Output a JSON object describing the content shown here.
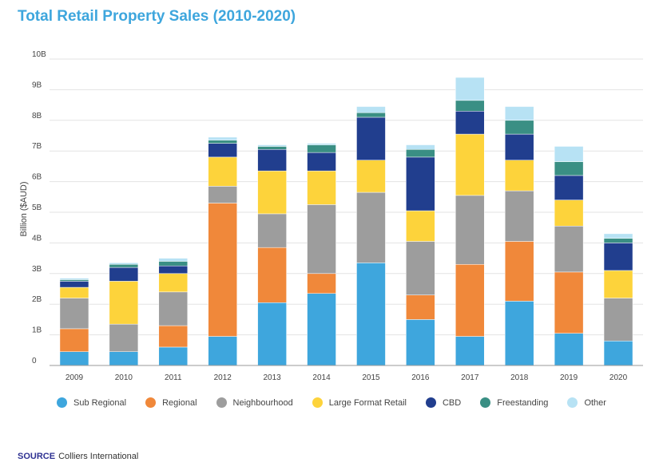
{
  "chart_data": {
    "type": "bar",
    "stacked": true,
    "title": "Total Retail Property Sales (2010-2020)",
    "ylabel": "Billion ($AUD)",
    "xlabel": "",
    "ylim": [
      0,
      10
    ],
    "yticks": [
      {
        "value": 0,
        "label": "0"
      },
      {
        "value": 1,
        "label": "1B"
      },
      {
        "value": 2,
        "label": "2B"
      },
      {
        "value": 3,
        "label": "3B"
      },
      {
        "value": 4,
        "label": "4B"
      },
      {
        "value": 5,
        "label": "5B"
      },
      {
        "value": 6,
        "label": "6B"
      },
      {
        "value": 7,
        "label": "7B"
      },
      {
        "value": 8,
        "label": "8B"
      },
      {
        "value": 9,
        "label": "9B"
      },
      {
        "value": 10,
        "label": "10B"
      }
    ],
    "grid": true,
    "legend_position": "bottom",
    "categories": [
      "2009",
      "2010",
      "2011",
      "2012",
      "2013",
      "2014",
      "2015",
      "2016",
      "2017",
      "2018",
      "2019",
      "2020"
    ],
    "series": [
      {
        "name": "Sub Regional",
        "color": "#3ea6dd",
        "values": [
          0.45,
          0.45,
          0.6,
          0.95,
          2.05,
          2.35,
          3.35,
          1.5,
          0.95,
          2.1,
          1.05,
          0.8
        ]
      },
      {
        "name": "Regional",
        "color": "#f0883a",
        "values": [
          0.75,
          0,
          0.7,
          4.35,
          1.8,
          0.65,
          0,
          0.8,
          2.35,
          1.95,
          2.0,
          0
        ]
      },
      {
        "name": "Neighbourhood",
        "color": "#9d9d9d",
        "values": [
          1.0,
          0.9,
          1.1,
          0.55,
          1.1,
          2.25,
          2.3,
          1.75,
          2.25,
          1.65,
          1.5,
          1.4
        ]
      },
      {
        "name": "Large Format Retail",
        "color": "#fdd33b",
        "values": [
          0.35,
          1.4,
          0.6,
          0.95,
          1.4,
          1.1,
          1.05,
          1.0,
          2.0,
          1.0,
          0.85,
          0.9
        ]
      },
      {
        "name": "CBD",
        "color": "#213e8e",
        "values": [
          0.2,
          0.45,
          0.25,
          0.45,
          0.7,
          0.6,
          1.4,
          1.75,
          0.75,
          0.85,
          0.8,
          0.9
        ]
      },
      {
        "name": "Freestanding",
        "color": "#3a8f84",
        "values": [
          0.05,
          0.1,
          0.15,
          0.1,
          0.1,
          0.25,
          0.15,
          0.25,
          0.35,
          0.45,
          0.45,
          0.15
        ]
      },
      {
        "name": "Other",
        "color": "#b7e2f4",
        "values": [
          0.05,
          0.05,
          0.1,
          0.1,
          0.05,
          0.05,
          0.2,
          0.15,
          0.75,
          0.45,
          0.5,
          0.15
        ]
      }
    ]
  },
  "source": {
    "label": "SOURCE",
    "text": "Colliers International"
  }
}
